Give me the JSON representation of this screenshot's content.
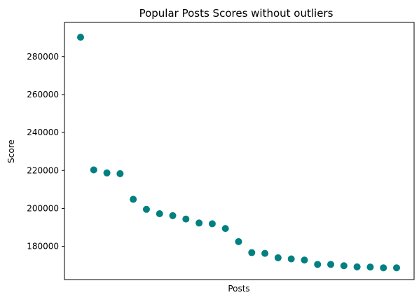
{
  "chart_data": {
    "type": "scatter",
    "title": "Popular Posts Scores without outliers",
    "xlabel": "Posts",
    "ylabel": "Score",
    "marker_color": "#008080",
    "grid": false,
    "show_x_ticks": false,
    "ylim": [
      162500,
      298000
    ],
    "y_ticks": [
      180000,
      200000,
      220000,
      240000,
      260000,
      280000
    ],
    "y_tick_labels": [
      "180000",
      "200000",
      "220000",
      "240000",
      "260000",
      "280000"
    ],
    "series": [
      {
        "values": [
          290200,
          220300,
          218700,
          218300,
          204800,
          199500,
          197200,
          196200,
          194400,
          192300,
          191900,
          189400,
          182500,
          176700,
          176300,
          174000,
          173400,
          172800,
          170500,
          170500,
          169800,
          169200,
          169100,
          168700,
          168700
        ]
      }
    ]
  }
}
